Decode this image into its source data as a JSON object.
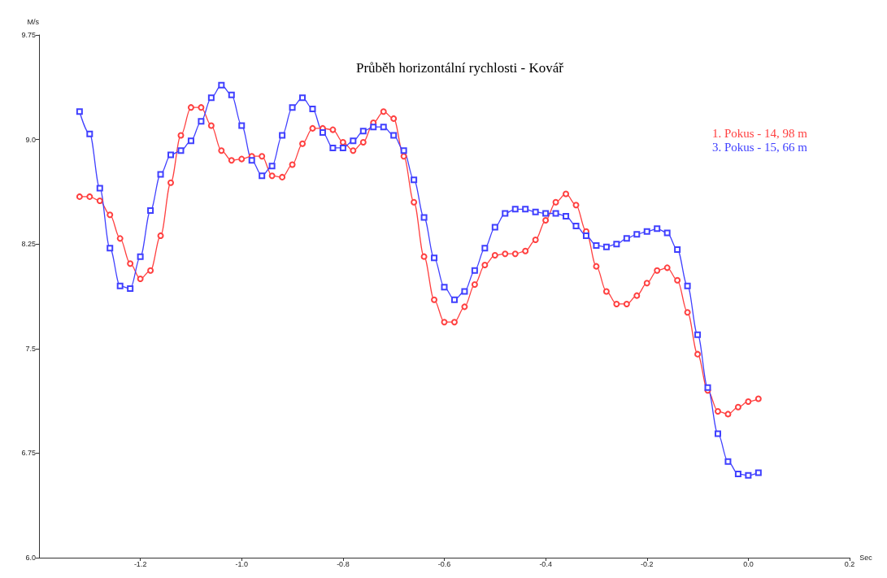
{
  "chart_data": {
    "type": "line",
    "title": "Průběh horizontální rychlosti - Kovář",
    "xlabel": "Sec",
    "ylabel": "M/s",
    "x": [
      -1.32,
      -1.3,
      -1.28,
      -1.26,
      -1.24,
      -1.22,
      -1.2,
      -1.18,
      -1.16,
      -1.14,
      -1.12,
      -1.1,
      -1.08,
      -1.06,
      -1.04,
      -1.02,
      -1.0,
      -0.98,
      -0.96,
      -0.94,
      -0.92,
      -0.9,
      -0.88,
      -0.86,
      -0.84,
      -0.82,
      -0.8,
      -0.78,
      -0.76,
      -0.74,
      -0.72,
      -0.7,
      -0.68,
      -0.66,
      -0.64,
      -0.62,
      -0.6,
      -0.58,
      -0.56,
      -0.54,
      -0.52,
      -0.5,
      -0.48,
      -0.46,
      -0.44,
      -0.42,
      -0.4,
      -0.38,
      -0.36,
      -0.34,
      -0.32,
      -0.3,
      -0.28,
      -0.26,
      -0.24,
      -0.22,
      -0.2,
      -0.18,
      -0.16,
      -0.14,
      -0.12,
      -0.1,
      -0.08,
      -0.06,
      -0.04,
      -0.02,
      0.0,
      0.02
    ],
    "series": [
      {
        "name": "1. Pokus - 14, 98 m",
        "color": "#ff4040",
        "marker": "circle",
        "values": [
          8.59,
          8.59,
          8.56,
          8.46,
          8.29,
          8.11,
          8.0,
          8.06,
          8.31,
          8.69,
          9.03,
          9.23,
          9.23,
          9.1,
          8.92,
          8.85,
          8.86,
          8.88,
          8.88,
          8.74,
          8.73,
          8.82,
          8.97,
          9.08,
          9.08,
          9.07,
          8.98,
          8.92,
          8.98,
          9.12,
          9.2,
          9.15,
          8.88,
          8.55,
          8.16,
          7.85,
          7.69,
          7.69,
          7.8,
          7.96,
          8.1,
          8.17,
          8.18,
          8.18,
          8.2,
          8.28,
          8.42,
          8.55,
          8.61,
          8.53,
          8.34,
          8.09,
          7.91,
          7.82,
          7.82,
          7.88,
          7.97,
          8.06,
          8.08,
          7.99,
          7.76,
          7.46,
          7.2,
          7.05,
          7.03,
          7.08,
          7.12,
          7.14
        ]
      },
      {
        "name": "3. Pokus - 15, 66 m",
        "color": "#4040ff",
        "marker": "square",
        "values": [
          9.2,
          9.04,
          8.65,
          8.22,
          7.95,
          7.93,
          8.16,
          8.49,
          8.75,
          8.89,
          8.92,
          8.99,
          9.13,
          9.3,
          9.39,
          9.32,
          9.1,
          8.85,
          8.74,
          8.81,
          9.03,
          9.23,
          9.3,
          9.22,
          9.05,
          8.94,
          8.94,
          8.99,
          9.06,
          9.09,
          9.09,
          9.03,
          8.92,
          8.71,
          8.44,
          8.15,
          7.94,
          7.85,
          7.91,
          8.06,
          8.22,
          8.37,
          8.47,
          8.5,
          8.5,
          8.48,
          8.47,
          8.47,
          8.45,
          8.38,
          8.31,
          8.24,
          8.23,
          8.25,
          8.29,
          8.32,
          8.34,
          8.36,
          8.33,
          8.21,
          7.95,
          7.6,
          7.22,
          6.89,
          6.69,
          6.6,
          6.59,
          6.61
        ]
      }
    ],
    "xlim": [
      -1.4,
      0.2
    ],
    "xticks": [
      -1.2,
      {
        "value": -1.0,
        "label": "-1.0"
      },
      -0.8,
      -0.6,
      -0.4,
      -0.2,
      {
        "value": 0,
        "label": "0.0"
      },
      0.2
    ],
    "ylim": [
      6.0,
      9.75
    ],
    "yticks": [
      {
        "value": 6.0,
        "label": "6.0"
      },
      6.75,
      7.5,
      8.25,
      {
        "value": 9.0,
        "label": "9.0"
      },
      9.75
    ],
    "grid": false,
    "legend": "top right",
    "line_style": "solid"
  }
}
